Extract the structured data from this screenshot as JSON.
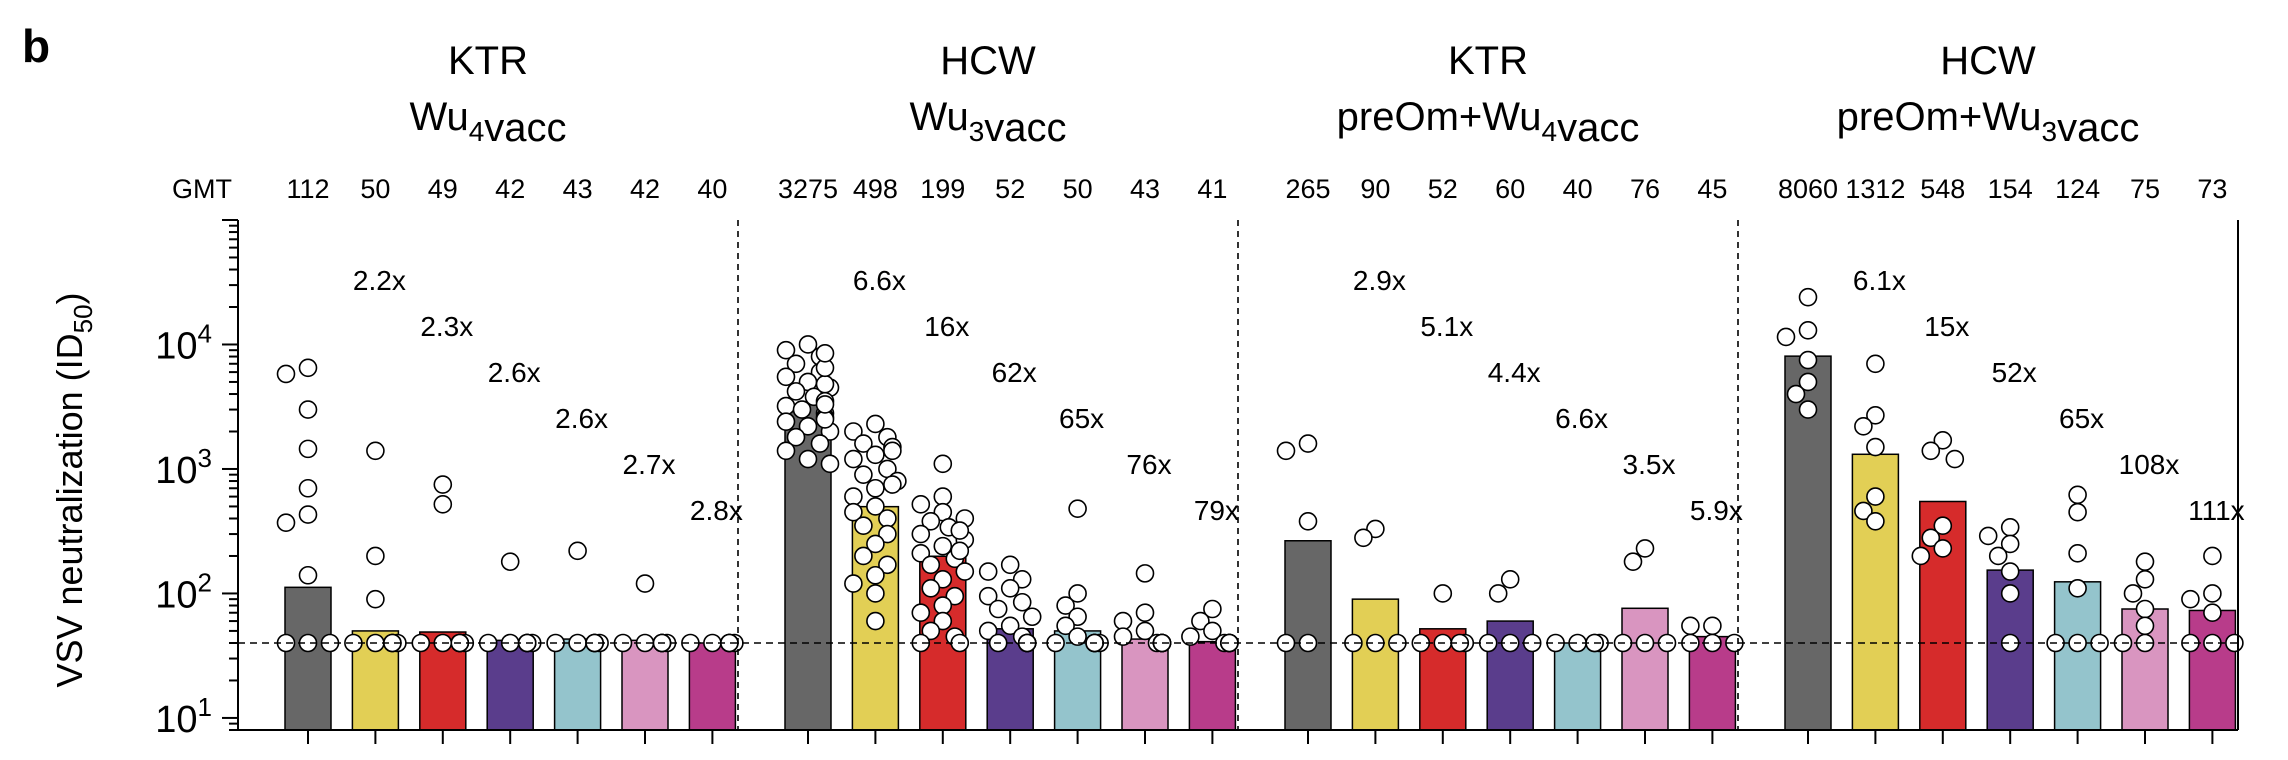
{
  "panel_label": "b",
  "chart_data": {
    "type": "bar",
    "yscale": "log",
    "ylim": [
      8,
      100000
    ],
    "ylabel_main": "VSV neutralization (ID",
    "ylabel_sub": "50",
    "ylabel_end": ")",
    "yticks": [
      {
        "value": 10,
        "base": "10",
        "exp": "1"
      },
      {
        "value": 100,
        "base": "10",
        "exp": "2"
      },
      {
        "value": 1000,
        "base": "10",
        "exp": "3"
      },
      {
        "value": 10000,
        "base": "10",
        "exp": "4"
      }
    ],
    "detection_limit": 40,
    "gmt_header": "GMT",
    "colors": [
      "#676767",
      "#e2cf55",
      "#d62b2b",
      "#5a3d8c",
      "#94c4cc",
      "#d995c0",
      "#b83c8a"
    ],
    "groups": [
      {
        "title_line1": "KTR",
        "title_line2_parts": [
          {
            "t": "Wu"
          },
          {
            "t": "4",
            "sub": true
          },
          {
            "t": "vacc"
          }
        ],
        "gmt": [
          "112",
          "50",
          "49",
          "42",
          "43",
          "42",
          "40"
        ],
        "values": [
          112,
          50,
          49,
          42,
          43,
          42,
          40
        ],
        "folds": [
          "2.2x",
          "2.3x",
          "2.6x",
          "2.6x",
          "2.7x",
          "2.8x"
        ],
        "points": [
          [
            6500,
            5800,
            3000,
            1450,
            700,
            430,
            370,
            140,
            40,
            40,
            40
          ],
          [
            1400,
            200,
            90,
            40,
            40,
            40,
            40,
            40,
            40
          ],
          [
            750,
            520,
            40,
            40,
            40,
            40,
            40,
            40,
            40
          ],
          [
            180,
            40,
            40,
            40,
            40,
            40,
            40,
            40
          ],
          [
            220,
            40,
            40,
            40,
            40,
            40,
            40,
            40
          ],
          [
            120,
            40,
            40,
            40,
            40,
            40,
            40,
            40
          ],
          [
            40,
            40,
            40,
            40,
            40,
            40,
            40
          ]
        ]
      },
      {
        "title_line1": "HCW",
        "title_line2_parts": [
          {
            "t": "Wu"
          },
          {
            "t": "3",
            "sub": true
          },
          {
            "t": "vacc"
          }
        ],
        "gmt": [
          "3275",
          "498",
          "199",
          "52",
          "50",
          "43",
          "41"
        ],
        "values": [
          3275,
          498,
          199,
          52,
          50,
          43,
          41
        ],
        "folds": [
          "6.6x",
          "16x",
          "62x",
          "65x",
          "76x",
          "79x"
        ],
        "points": [
          [
            10000,
            9000,
            8000,
            7000,
            6000,
            5500,
            5000,
            4500,
            4200,
            3800,
            3500,
            3200,
            3000,
            2800,
            2600,
            2400,
            2200,
            2000,
            1800,
            1600,
            1400,
            1200,
            1100,
            2500,
            3300,
            4800,
            6500,
            8500
          ],
          [
            2300,
            2000,
            1800,
            1600,
            1500,
            1300,
            1200,
            1000,
            900,
            800,
            700,
            600,
            500,
            450,
            400,
            350,
            300,
            250,
            200,
            170,
            140,
            120,
            100,
            60,
            1400,
            750
          ],
          [
            1100,
            600,
            520,
            450,
            400,
            380,
            340,
            300,
            270,
            240,
            210,
            190,
            170,
            150,
            130,
            110,
            95,
            80,
            70,
            60,
            50,
            45,
            40,
            40,
            220,
            320
          ],
          [
            170,
            150,
            130,
            110,
            95,
            85,
            75,
            65,
            55,
            50,
            45,
            40,
            40,
            40,
            40,
            40,
            40
          ],
          [
            480,
            100,
            80,
            65,
            55,
            45,
            40,
            40,
            40,
            40,
            40,
            40,
            40
          ],
          [
            145,
            70,
            60,
            50,
            45,
            40,
            40,
            40,
            40,
            40,
            40,
            40
          ],
          [
            75,
            60,
            50,
            45,
            40,
            40,
            40,
            40,
            40,
            40,
            40
          ]
        ]
      },
      {
        "title_line1": "KTR",
        "title_line2_parts": [
          {
            "t": "preOm+Wu"
          },
          {
            "t": "4",
            "sub": true
          },
          {
            "t": "vacc"
          }
        ],
        "gmt": [
          "265",
          "90",
          "52",
          "60",
          "40",
          "76",
          "45"
        ],
        "values": [
          265,
          90,
          52,
          60,
          40,
          76,
          45
        ],
        "folds": [
          "2.9x",
          "5.1x",
          "4.4x",
          "6.6x",
          "3.5x",
          "5.9x"
        ],
        "points": [
          [
            1600,
            1400,
            380,
            40,
            40
          ],
          [
            330,
            280,
            40,
            40,
            40
          ],
          [
            100,
            40,
            40,
            40,
            40
          ],
          [
            130,
            100,
            40,
            40,
            40
          ],
          [
            40,
            40,
            40,
            40,
            40
          ],
          [
            230,
            180,
            40,
            40,
            40
          ],
          [
            55,
            55,
            40,
            40,
            40
          ]
        ]
      },
      {
        "title_line1": "HCW",
        "title_line2_parts": [
          {
            "t": "preOm+Wu"
          },
          {
            "t": "3",
            "sub": true
          },
          {
            "t": "vacc"
          }
        ],
        "gmt": [
          "8060",
          "1312",
          "548",
          "154",
          "124",
          "75",
          "73"
        ],
        "values": [
          8060,
          1312,
          548,
          154,
          124,
          75,
          73
        ],
        "folds": [
          "6.1x",
          "15x",
          "52x",
          "65x",
          "108x",
          "111x"
        ],
        "points": [
          [
            24000,
            13000,
            11500,
            7500,
            5000,
            4000,
            3000
          ],
          [
            7000,
            2700,
            2200,
            1500,
            600,
            460,
            380
          ],
          [
            1700,
            1400,
            1200,
            350,
            280,
            230,
            200
          ],
          [
            340,
            290,
            250,
            200,
            150,
            100,
            40
          ],
          [
            620,
            450,
            210,
            110,
            40,
            40,
            40
          ],
          [
            180,
            130,
            100,
            75,
            55,
            40,
            40
          ],
          [
            200,
            100,
            90,
            70,
            40,
            40,
            40
          ]
        ]
      }
    ]
  }
}
